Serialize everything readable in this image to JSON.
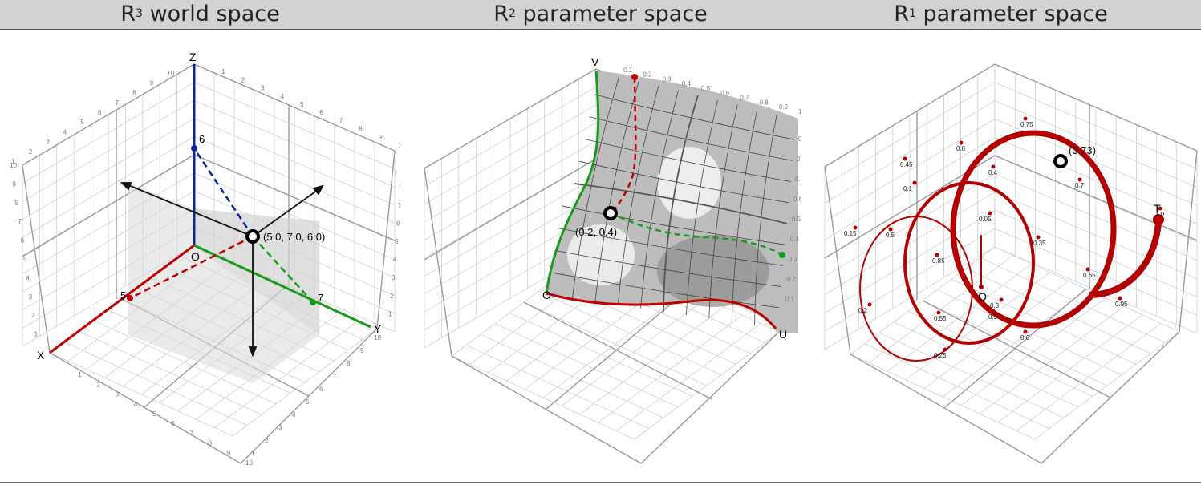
{
  "titles": {
    "world": {
      "base": "R",
      "sup": "3",
      "rest": " world space"
    },
    "r2": {
      "base": "R",
      "sup": "2",
      "rest": " parameter space"
    },
    "r1": {
      "base": "R",
      "sup": "1",
      "rest": " parameter space"
    }
  },
  "colors": {
    "x_axis": "#c00000",
    "y_axis": "#1a9a1a",
    "z_axis": "#0a2a9a",
    "curve": "#b30000",
    "grid": "#c8c8c8",
    "box": "#999999"
  },
  "world": {
    "axis_labels": {
      "x": "X",
      "y": "Y",
      "z": "Z",
      "origin": "O"
    },
    "ticks": [
      "1",
      "2",
      "3",
      "4",
      "5",
      "6",
      "7",
      "8",
      "9",
      "10"
    ],
    "point_label": "(5.0, 7.0, 6.0)",
    "proj_x": "5",
    "proj_y": "7",
    "proj_z": "6"
  },
  "r2": {
    "labels": {
      "u": "U",
      "v": "V",
      "origin": "O"
    },
    "u_ticks": [
      "0.1",
      "0.2",
      "0.3",
      "0.4",
      "0.5",
      "0.6",
      "0.7",
      "0.8",
      "0.9",
      "1.0"
    ],
    "v_ticks": [
      "0.1",
      "0.2",
      "0.3",
      "0.4",
      "0.5",
      "0.6",
      "0.7",
      "0.8",
      "0.9",
      "1.0"
    ],
    "point_label": "(0.2, 0.4)"
  },
  "r1": {
    "labels": {
      "t": "T",
      "origin": "O"
    },
    "point_label": "(0.73)",
    "t_ticks": [
      "0.05",
      "0.1",
      "0.15",
      "0.2",
      "0.25",
      "0.3",
      "0.35",
      "0.4",
      "0.45",
      "0.5",
      "0.55",
      "0.6",
      "0.65",
      "0.7",
      "0.75",
      "0.8",
      "0.85",
      "0.9",
      "0.95",
      "1.0"
    ]
  }
}
